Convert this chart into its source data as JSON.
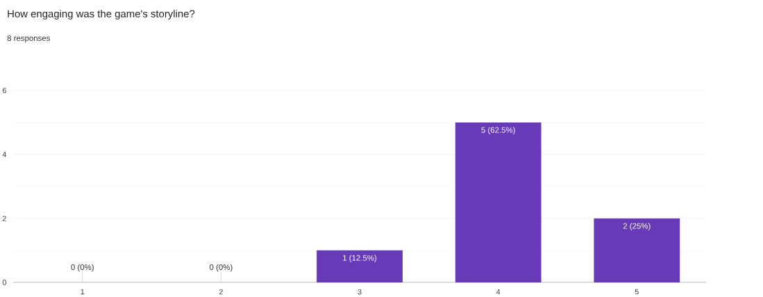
{
  "chart_data": {
    "type": "bar",
    "title": "How engaging was the game's storyline?",
    "subtitle": "8 responses",
    "categories": [
      "1",
      "2",
      "3",
      "4",
      "5"
    ],
    "values": [
      0,
      0,
      1,
      5,
      2
    ],
    "value_labels": [
      "0 (0%)",
      "0 (0%)",
      "1 (12.5%)",
      "5 (62.5%)",
      "2 (25%)"
    ],
    "color": "#673ab7",
    "ylim": [
      0,
      6
    ],
    "yticks": [
      0,
      2,
      4,
      6
    ],
    "grid": "y"
  }
}
